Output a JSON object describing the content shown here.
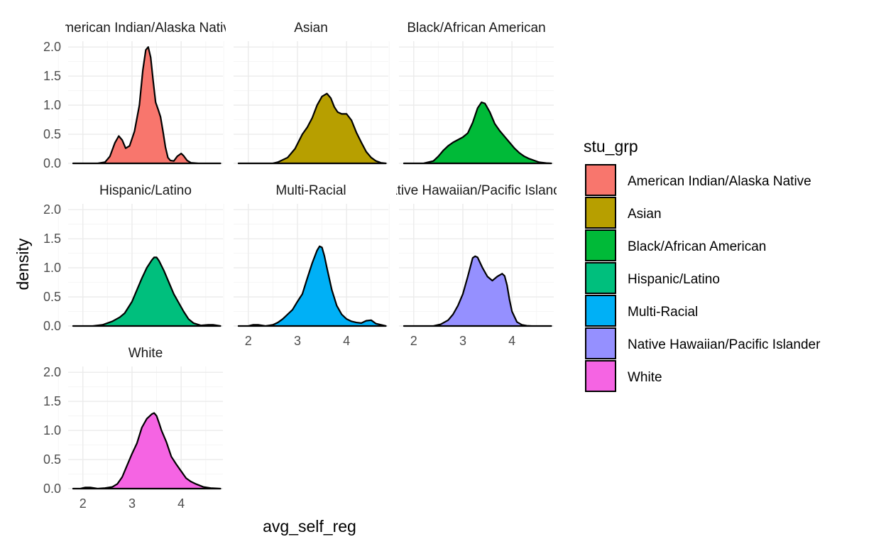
{
  "chart_data": {
    "type": "area",
    "facet_variable": "stu_grp",
    "xlabel": "avg_self_reg",
    "ylabel": "density",
    "xlim": [
      1.7,
      4.85
    ],
    "ylim": [
      0,
      2.1
    ],
    "x_ticks": [
      2,
      3,
      4
    ],
    "y_ticks": [
      0.0,
      0.5,
      1.0,
      1.5,
      2.0
    ],
    "y_tick_labels": [
      "0.0",
      "0.5",
      "1.0",
      "1.5",
      "2.0"
    ],
    "grid": true,
    "facet_columns": 3,
    "legend": {
      "title": "stu_grp",
      "placement": "right",
      "entries": [
        {
          "label": "American Indian/Alaska Native",
          "color": "#F8766D"
        },
        {
          "label": "Asian",
          "color": "#B79F00"
        },
        {
          "label": "Black/African American",
          "color": "#00BA38"
        },
        {
          "label": "Hispanic/Latino",
          "color": "#00BF7D"
        },
        {
          "label": "Multi-Racial",
          "color": "#00B0F6"
        },
        {
          "label": "Native Hawaiian/Pacific Islander",
          "color": "#9590FF"
        },
        {
          "label": "White",
          "color": "#F564E3"
        }
      ]
    },
    "series": [
      {
        "name": "American Indian/Alaska Native",
        "strip_label": "American Indian/Alaska Native",
        "color": "#F8766D",
        "x": [
          1.8,
          2.3,
          2.45,
          2.55,
          2.65,
          2.73,
          2.8,
          2.87,
          2.95,
          3.05,
          3.15,
          3.22,
          3.28,
          3.33,
          3.38,
          3.43,
          3.48,
          3.53,
          3.58,
          3.63,
          3.68,
          3.73,
          3.78,
          3.85,
          3.92,
          4.0,
          4.05,
          4.12,
          4.2,
          4.35,
          4.8
        ],
        "y": [
          0.0,
          0.0,
          0.02,
          0.12,
          0.35,
          0.47,
          0.4,
          0.26,
          0.3,
          0.55,
          1.0,
          1.6,
          1.95,
          2.0,
          1.82,
          1.42,
          1.05,
          0.93,
          0.8,
          0.55,
          0.28,
          0.1,
          0.05,
          0.04,
          0.12,
          0.17,
          0.13,
          0.05,
          0.01,
          0.0,
          0.0
        ]
      },
      {
        "name": "Asian",
        "strip_label": "Asian",
        "color": "#B79F00",
        "x": [
          1.8,
          2.5,
          2.6,
          2.8,
          2.95,
          3.1,
          3.2,
          3.3,
          3.4,
          3.5,
          3.6,
          3.68,
          3.75,
          3.82,
          3.9,
          4.0,
          4.1,
          4.2,
          4.3,
          4.4,
          4.5,
          4.6,
          4.7,
          4.8
        ],
        "y": [
          0.0,
          0.0,
          0.02,
          0.1,
          0.25,
          0.5,
          0.62,
          0.78,
          1.0,
          1.15,
          1.2,
          1.12,
          0.97,
          0.88,
          0.85,
          0.85,
          0.74,
          0.53,
          0.36,
          0.2,
          0.1,
          0.04,
          0.01,
          0.0
        ]
      },
      {
        "name": "Black/African American",
        "strip_label": "Black/African American",
        "color": "#00BA38",
        "x": [
          1.8,
          2.2,
          2.4,
          2.5,
          2.6,
          2.7,
          2.8,
          3.0,
          3.1,
          3.2,
          3.3,
          3.38,
          3.45,
          3.55,
          3.65,
          3.75,
          3.85,
          3.95,
          4.05,
          4.15,
          4.25,
          4.35,
          4.45,
          4.55,
          4.7,
          4.8
        ],
        "y": [
          0.0,
          0.0,
          0.04,
          0.12,
          0.22,
          0.3,
          0.36,
          0.45,
          0.52,
          0.7,
          0.95,
          1.05,
          1.03,
          0.88,
          0.68,
          0.56,
          0.46,
          0.36,
          0.26,
          0.18,
          0.12,
          0.08,
          0.05,
          0.02,
          0.005,
          0.0
        ]
      },
      {
        "name": "Hispanic/Latino",
        "strip_label": "Hispanic/Latino",
        "color": "#00BF7D",
        "x": [
          1.8,
          2.2,
          2.4,
          2.6,
          2.75,
          2.85,
          3.0,
          3.1,
          3.2,
          3.3,
          3.4,
          3.45,
          3.5,
          3.55,
          3.65,
          3.75,
          3.85,
          3.95,
          4.05,
          4.15,
          4.25,
          4.4,
          4.55,
          4.65,
          4.8
        ],
        "y": [
          0.0,
          0.0,
          0.02,
          0.08,
          0.15,
          0.22,
          0.42,
          0.62,
          0.82,
          1.0,
          1.13,
          1.18,
          1.18,
          1.12,
          0.95,
          0.75,
          0.55,
          0.4,
          0.25,
          0.12,
          0.05,
          0.01,
          0.02,
          0.02,
          0.0
        ]
      },
      {
        "name": "Multi-Racial",
        "strip_label": "Multi-Racial",
        "color": "#00B0F6",
        "x": [
          1.8,
          2.0,
          2.1,
          2.2,
          2.35,
          2.5,
          2.6,
          2.7,
          2.8,
          2.9,
          3.0,
          3.1,
          3.2,
          3.3,
          3.4,
          3.45,
          3.5,
          3.55,
          3.6,
          3.7,
          3.8,
          3.9,
          4.0,
          4.1,
          4.2,
          4.3,
          4.4,
          4.5,
          4.6,
          4.8
        ],
        "y": [
          0.0,
          0.0,
          0.02,
          0.02,
          0.0,
          0.02,
          0.06,
          0.12,
          0.2,
          0.28,
          0.42,
          0.55,
          0.82,
          1.08,
          1.3,
          1.37,
          1.35,
          1.2,
          1.0,
          0.62,
          0.35,
          0.2,
          0.12,
          0.08,
          0.06,
          0.05,
          0.09,
          0.1,
          0.04,
          0.0
        ]
      },
      {
        "name": "Native Hawaiian/Pacific Islander",
        "strip_label": "Native Hawaiian/Pacific Islander",
        "color": "#9590FF",
        "x": [
          1.8,
          2.4,
          2.55,
          2.7,
          2.8,
          2.9,
          3.0,
          3.1,
          3.2,
          3.25,
          3.3,
          3.4,
          3.5,
          3.6,
          3.7,
          3.8,
          3.85,
          3.9,
          3.95,
          4.0,
          4.1,
          4.2,
          4.3,
          4.4,
          4.8
        ],
        "y": [
          0.0,
          0.0,
          0.03,
          0.1,
          0.2,
          0.35,
          0.55,
          0.85,
          1.17,
          1.2,
          1.18,
          1.0,
          0.85,
          0.78,
          0.85,
          0.9,
          0.86,
          0.7,
          0.45,
          0.25,
          0.07,
          0.02,
          0.005,
          0.0,
          0.0
        ]
      },
      {
        "name": "White",
        "strip_label": "White",
        "color": "#F564E3",
        "x": [
          1.8,
          1.95,
          2.05,
          2.15,
          2.3,
          2.45,
          2.6,
          2.7,
          2.8,
          2.9,
          3.0,
          3.1,
          3.2,
          3.3,
          3.4,
          3.45,
          3.5,
          3.55,
          3.6,
          3.7,
          3.8,
          3.9,
          4.0,
          4.1,
          4.2,
          4.3,
          4.45,
          4.6,
          4.8
        ],
        "y": [
          0.0,
          0.0,
          0.02,
          0.02,
          0.0,
          0.01,
          0.03,
          0.08,
          0.2,
          0.4,
          0.6,
          0.78,
          1.05,
          1.2,
          1.28,
          1.3,
          1.25,
          1.13,
          1.0,
          0.8,
          0.55,
          0.42,
          0.3,
          0.18,
          0.12,
          0.08,
          0.03,
          0.01,
          0.0
        ]
      }
    ]
  }
}
